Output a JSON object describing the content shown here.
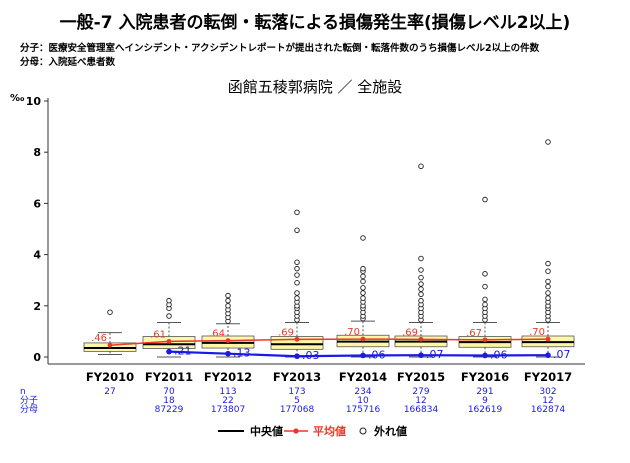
{
  "header": {
    "title": "一般-7 入院患者の転倒・転落による損傷発生率(損傷レベル2以上)",
    "numerator_def": "分子：医療安全管理室へインシデント・アクシデントレポートが提出された転倒・転落件数のうち損傷レベル2以上の件数",
    "denominator_def": "分母：入院延べ患者数"
  },
  "chart_data": {
    "type": "box",
    "title": "函館五稜郭病院 ／ 全施設",
    "ylabel": "‰",
    "ylim": [
      0,
      10
    ],
    "yticks": [
      0,
      2,
      4,
      6,
      8,
      10
    ],
    "categories": [
      "FY2010",
      "FY2011",
      "FY2012",
      "FY2013",
      "FY2014",
      "FY2015",
      "FY2016",
      "FY2017"
    ],
    "box": [
      {
        "low": 0.1,
        "q1": 0.22,
        "median": 0.35,
        "q3": 0.55,
        "high": 0.95
      },
      {
        "low": 0.0,
        "q1": 0.33,
        "median": 0.5,
        "q3": 0.8,
        "high": 1.35
      },
      {
        "low": 0.0,
        "q1": 0.35,
        "median": 0.55,
        "q3": 0.82,
        "high": 1.3
      },
      {
        "low": 0.0,
        "q1": 0.3,
        "median": 0.5,
        "q3": 0.8,
        "high": 1.35
      },
      {
        "low": 0.0,
        "q1": 0.4,
        "median": 0.6,
        "q3": 0.85,
        "high": 1.4
      },
      {
        "low": 0.0,
        "q1": 0.4,
        "median": 0.6,
        "q3": 0.82,
        "high": 1.35
      },
      {
        "low": 0.0,
        "q1": 0.38,
        "median": 0.58,
        "q3": 0.8,
        "high": 1.35
      },
      {
        "low": 0.0,
        "q1": 0.4,
        "median": 0.58,
        "q3": 0.82,
        "high": 1.35
      }
    ],
    "outliers": [
      [
        1.75
      ],
      [
        1.6,
        1.9,
        2.05,
        2.2
      ],
      [
        1.4,
        1.55,
        1.7,
        1.85,
        2.0,
        2.2,
        2.4
      ],
      [
        1.45,
        1.6,
        1.75,
        1.9,
        2.0,
        2.15,
        2.3,
        2.5,
        2.9,
        3.2,
        3.45,
        3.7,
        4.95,
        5.65
      ],
      [
        1.5,
        1.6,
        1.75,
        1.9,
        2.0,
        2.15,
        2.3,
        2.5,
        2.7,
        2.95,
        3.15,
        3.35,
        3.45,
        4.65
      ],
      [
        1.45,
        1.6,
        1.75,
        1.9,
        2.05,
        2.2,
        2.45,
        2.65,
        2.85,
        3.1,
        3.4,
        3.85,
        7.45
      ],
      [
        1.45,
        1.6,
        1.75,
        1.9,
        2.05,
        2.25,
        2.75,
        3.25,
        6.15
      ],
      [
        1.45,
        1.6,
        1.75,
        1.9,
        2.0,
        2.15,
        2.3,
        2.5,
        2.75,
        2.95,
        3.35,
        3.65,
        8.4
      ]
    ],
    "mean_values": [
      0.46,
      0.61,
      0.64,
      0.69,
      0.7,
      0.69,
      0.67,
      0.7
    ],
    "hospital_values": [
      null,
      0.21,
      0.13,
      0.03,
      0.06,
      0.07,
      0.06,
      0.07
    ],
    "table_labels": {
      "n": "n",
      "numerator": "分子",
      "denominator": "分母"
    },
    "n": [
      27,
      70,
      113,
      173,
      234,
      279,
      291,
      302
    ],
    "numerator": [
      null,
      18,
      22,
      5,
      10,
      12,
      9,
      12
    ],
    "denominator": [
      null,
      87229,
      173807,
      177068,
      175716,
      166834,
      162619,
      162874
    ],
    "legend": {
      "items": [
        "中央値",
        "平均値",
        "外れ値"
      ],
      "placement": "bottom"
    },
    "colors": {
      "box_fill": "#FFF7A8",
      "median": "#000000",
      "mean": "#E8392A",
      "hospital": "#1A1AE6",
      "table_text": "#1A1AE6"
    }
  }
}
